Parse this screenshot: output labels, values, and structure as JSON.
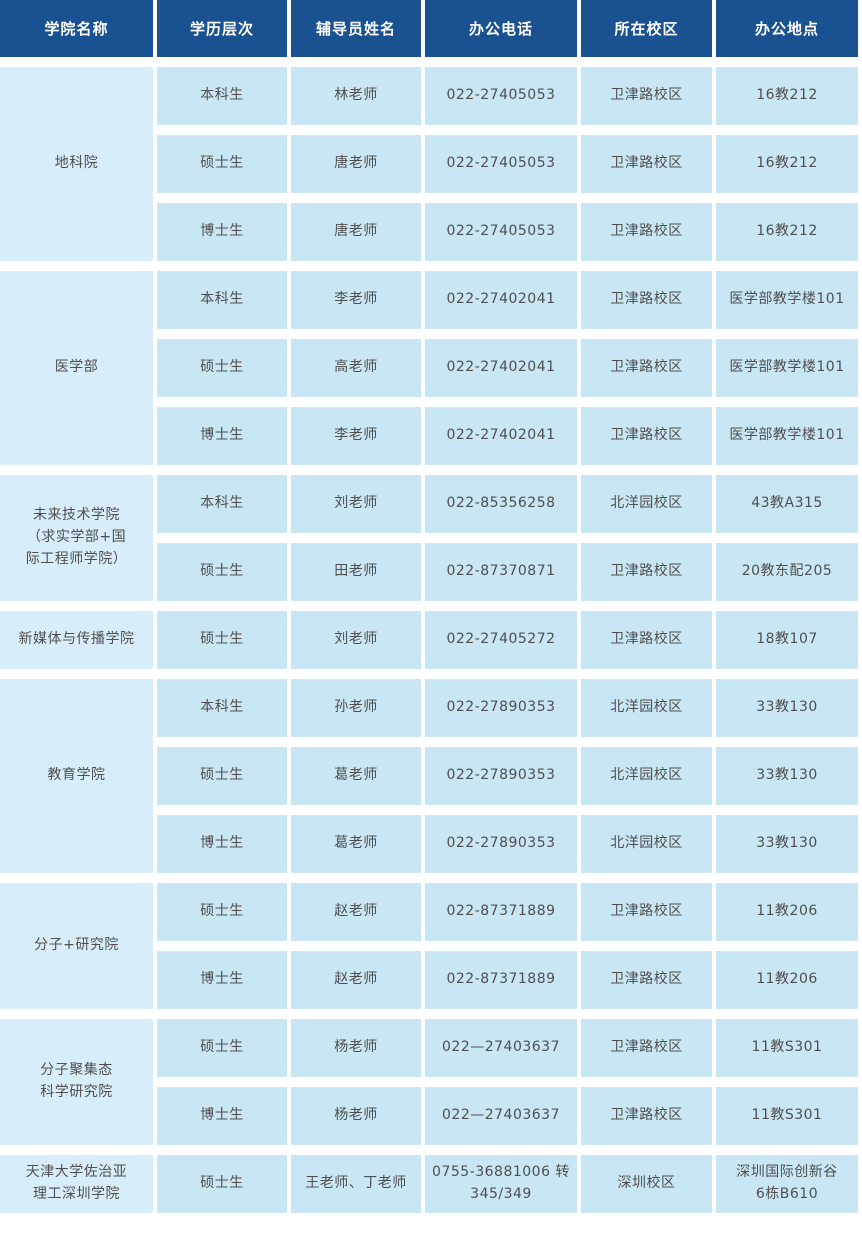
{
  "colors": {
    "header_bg": "#1a5190",
    "header_text": "#ffffff",
    "cell_bg": "#c9e6f5",
    "college_cell_bg": "#d7edf9",
    "cell_text": "#4f4f4f"
  },
  "table": {
    "columns": [
      "学院名称",
      "学历层次",
      "辅导员姓名",
      "办公电话",
      "所在校区",
      "办公地点"
    ],
    "groups": [
      {
        "college": "地科院",
        "rows": [
          {
            "level": "本科生",
            "counselor": "林老师",
            "phone": "022-27405053",
            "campus": "卫津路校区",
            "office": "16教212"
          },
          {
            "level": "硕士生",
            "counselor": "唐老师",
            "phone": "022-27405053",
            "campus": "卫津路校区",
            "office": "16教212"
          },
          {
            "level": "博士生",
            "counselor": "唐老师",
            "phone": "022-27405053",
            "campus": "卫津路校区",
            "office": "16教212"
          }
        ]
      },
      {
        "college": "医学部",
        "rows": [
          {
            "level": "本科生",
            "counselor": "李老师",
            "phone": "022-27402041",
            "campus": "卫津路校区",
            "office": "医学部教学楼101"
          },
          {
            "level": "硕士生",
            "counselor": "高老师",
            "phone": "022-27402041",
            "campus": "卫津路校区",
            "office": "医学部教学楼101"
          },
          {
            "level": "博士生",
            "counselor": "李老师",
            "phone": "022-27402041",
            "campus": "卫津路校区",
            "office": "医学部教学楼101"
          }
        ]
      },
      {
        "college": "未来技术学院\n（求实学部+国\n际工程师学院）",
        "rows": [
          {
            "level": "本科生",
            "counselor": "刘老师",
            "phone": "022-85356258",
            "campus": "北洋园校区",
            "office": "43教A315"
          },
          {
            "level": "硕士生",
            "counselor": "田老师",
            "phone": "022-87370871",
            "campus": "卫津路校区",
            "office": "20教东配205"
          }
        ]
      },
      {
        "college": "新媒体与传播学院",
        "rows": [
          {
            "level": "硕士生",
            "counselor": "刘老师",
            "phone": "022-27405272",
            "campus": "卫津路校区",
            "office": "18教107"
          }
        ]
      },
      {
        "college": "教育学院",
        "rows": [
          {
            "level": "本科生",
            "counselor": "孙老师",
            "phone": "022-27890353",
            "campus": "北洋园校区",
            "office": "33教130"
          },
          {
            "level": "硕士生",
            "counselor": "葛老师",
            "phone": "022-27890353",
            "campus": "北洋园校区",
            "office": "33教130"
          },
          {
            "level": "博士生",
            "counselor": "葛老师",
            "phone": "022-27890353",
            "campus": "北洋园校区",
            "office": "33教130"
          }
        ]
      },
      {
        "college": "分子+研究院",
        "rows": [
          {
            "level": "硕士生",
            "counselor": "赵老师",
            "phone": "022-87371889",
            "campus": "卫津路校区",
            "office": "11教206"
          },
          {
            "level": "博士生",
            "counselor": "赵老师",
            "phone": "022-87371889",
            "campus": "卫津路校区",
            "office": "11教206"
          }
        ]
      },
      {
        "college": "分子聚集态\n科学研究院",
        "rows": [
          {
            "level": "硕士生",
            "counselor": "杨老师",
            "phone": "022—27403637",
            "campus": "卫津路校区",
            "office": "11教S301"
          },
          {
            "level": "博士生",
            "counselor": "杨老师",
            "phone": "022—27403637",
            "campus": "卫津路校区",
            "office": "11教S301"
          }
        ]
      },
      {
        "college": "天津大学佐治亚\n理工深圳学院",
        "rows": [
          {
            "level": "硕士生",
            "counselor": "王老师、丁老师",
            "phone": "0755-36881006 转\n345/349",
            "campus": "深圳校区",
            "office": "深圳国际创新谷\n6栋B610"
          }
        ]
      }
    ]
  }
}
